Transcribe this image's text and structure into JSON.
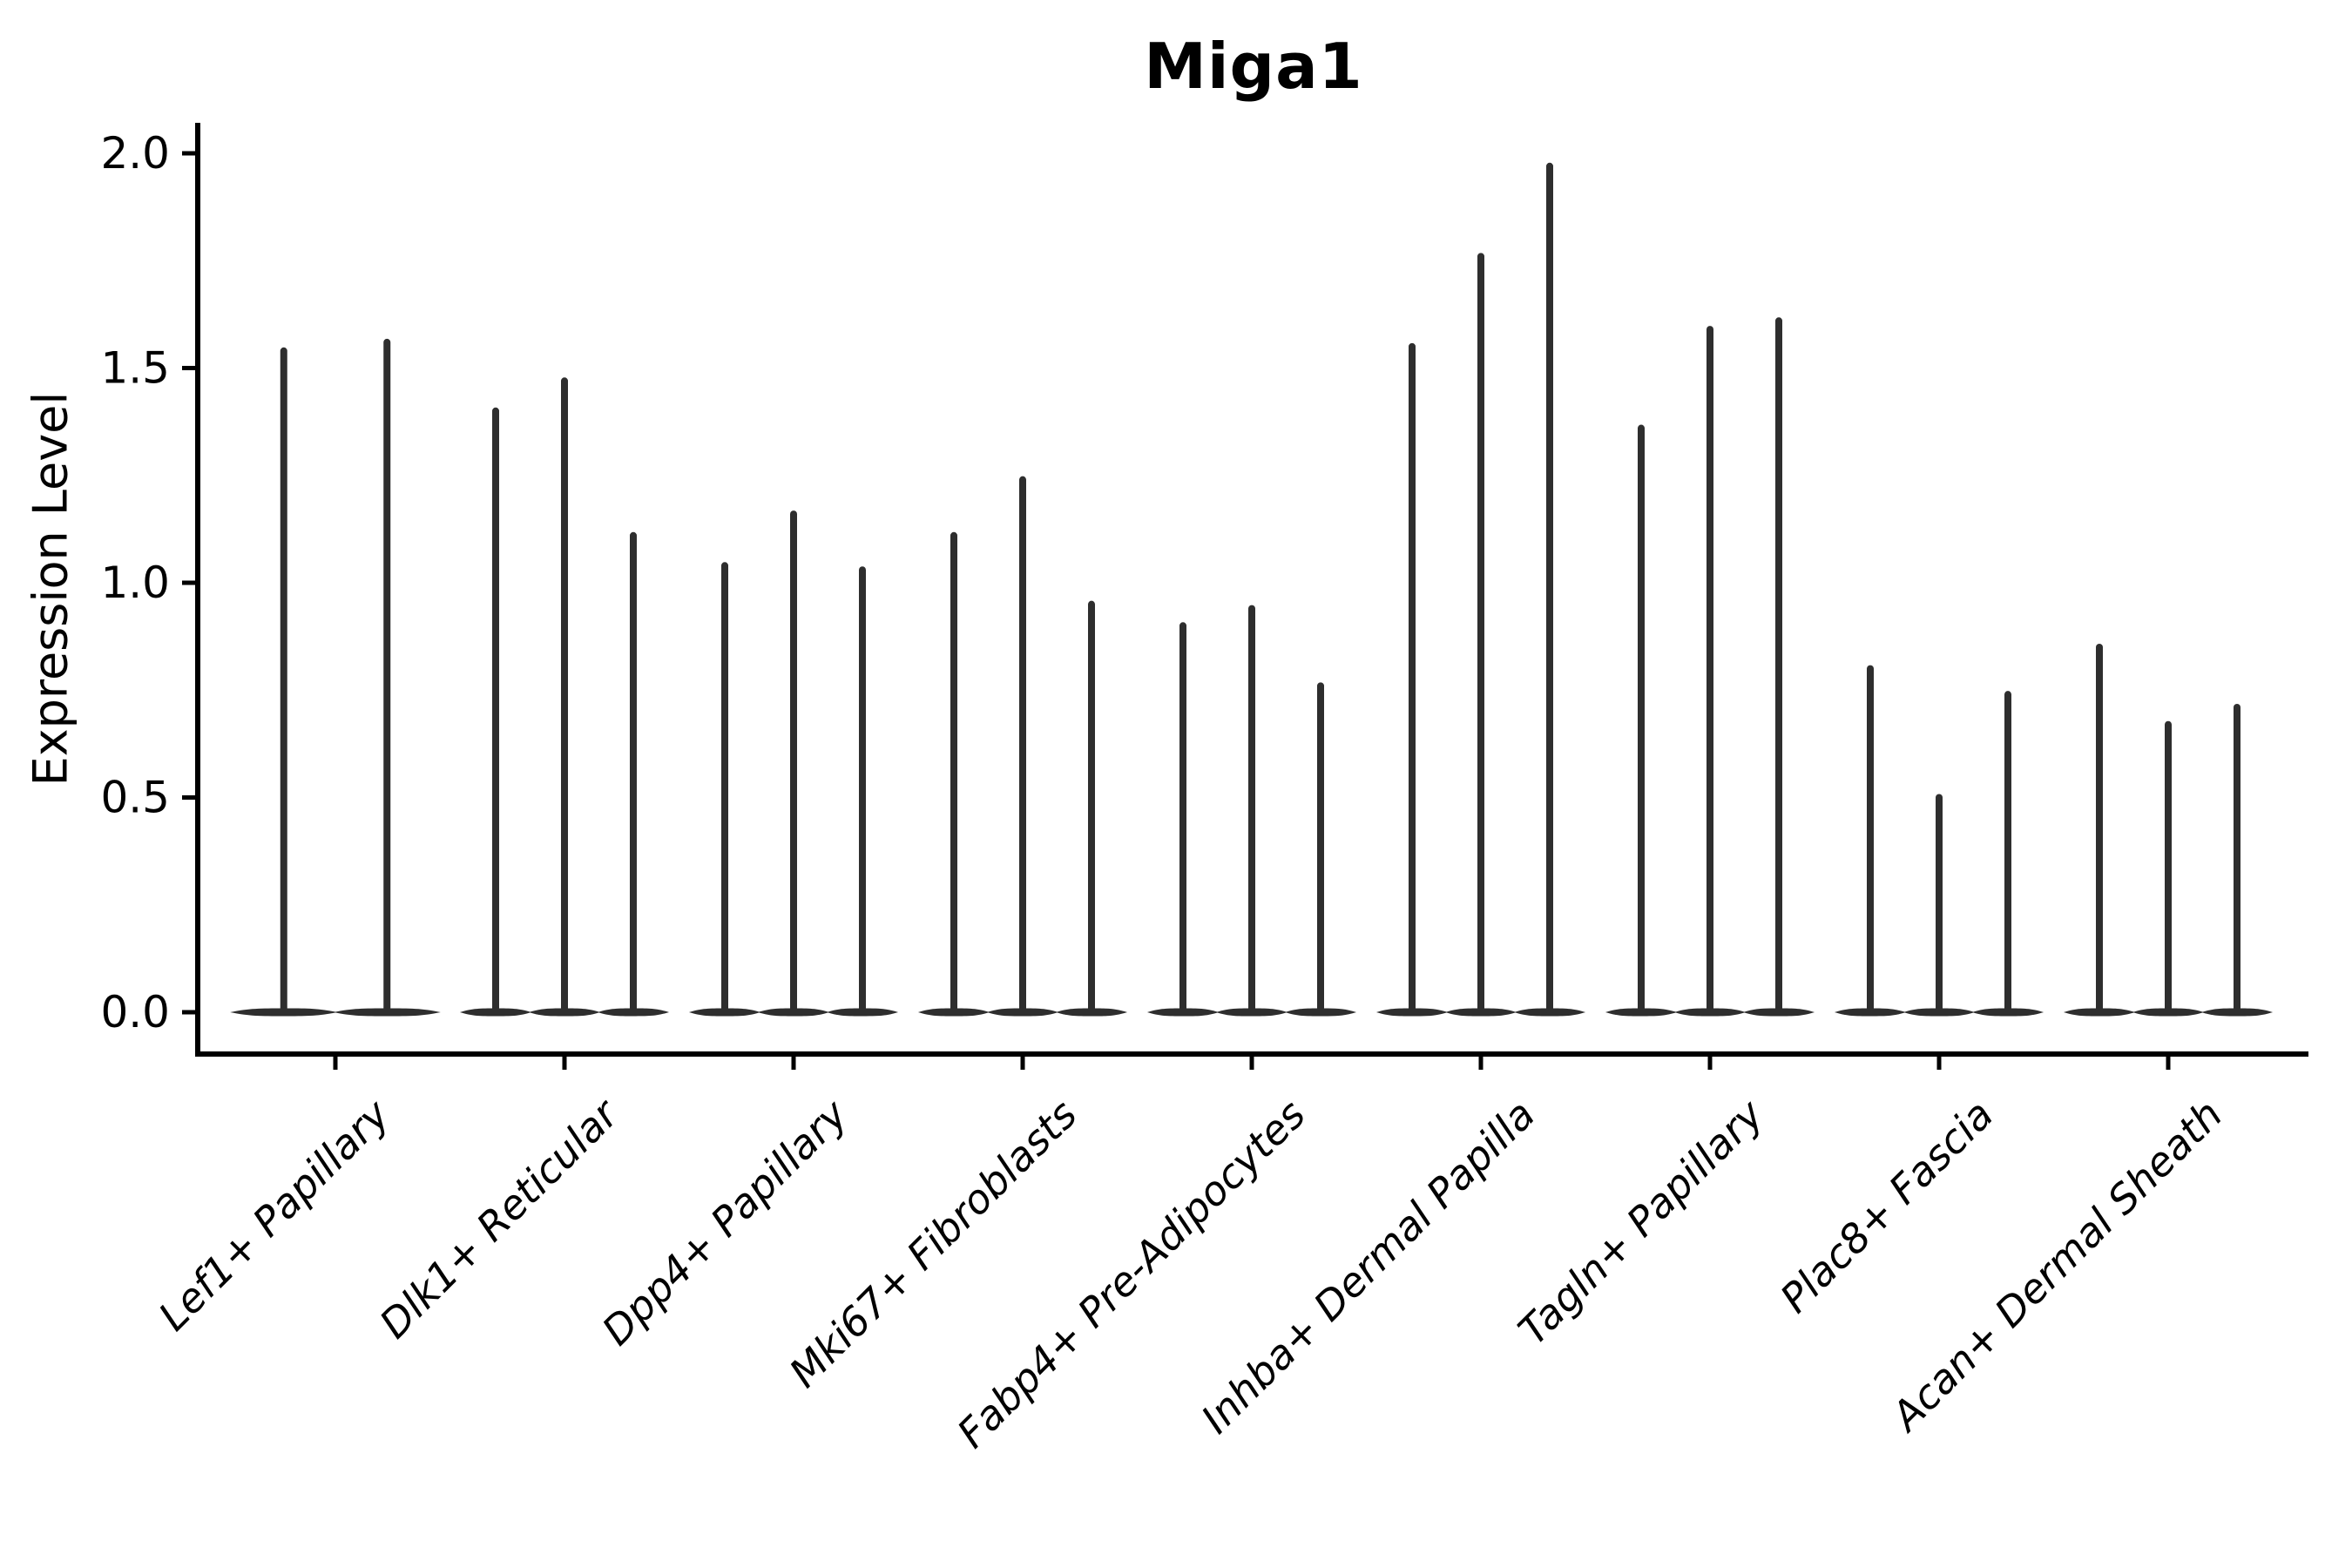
{
  "chart_data": {
    "type": "violin",
    "title": "Miga1",
    "ylabel": "Expression Level",
    "xlabel": "",
    "ytick_values": [
      0.0,
      0.5,
      1.0,
      1.5,
      2.0
    ],
    "ytick_labels": [
      "0.0",
      "0.5",
      "1.0",
      "1.5",
      "2.0"
    ],
    "ylim": [
      -0.1,
      2.07
    ],
    "grid": false,
    "legend": "none",
    "violin_color": "#2e2e2e",
    "axis_color": "#000000",
    "shape_note": "Seurat-style violins: dense flat mass at expression 0 with a thin vertical tail rising to the listed maximum",
    "categories": [
      "Lef1+ Papillary",
      "Dlk1+ Reticular",
      "Dpp4+ Papillary",
      "Mki67+ Fibroblasts",
      "Fabp4+ Pre-Adipocytes",
      "Inhba+ Dermal Papilla",
      "Tagln+ Papillary",
      "Plac8+ Fascia",
      "Acan+ Dermal Sheath"
    ],
    "groups": [
      {
        "label": "Lef1+ Papillary",
        "violin_maxima": [
          1.54,
          1.56
        ]
      },
      {
        "label": "Dlk1+ Reticular",
        "violin_maxima": [
          1.4,
          1.47,
          1.11
        ]
      },
      {
        "label": "Dpp4+ Papillary",
        "violin_maxima": [
          1.04,
          1.16,
          1.03
        ]
      },
      {
        "label": "Mki67+ Fibroblasts",
        "violin_maxima": [
          1.11,
          1.24,
          0.95
        ]
      },
      {
        "label": "Fabp4+ Pre-Adipocytes",
        "violin_maxima": [
          0.9,
          0.94,
          0.76
        ]
      },
      {
        "label": "Inhba+ Dermal Papilla",
        "violin_maxima": [
          1.55,
          1.76,
          1.97
        ]
      },
      {
        "label": "Tagln+ Papillary",
        "violin_maxima": [
          1.36,
          1.59,
          1.61
        ]
      },
      {
        "label": "Plac8+ Fascia",
        "violin_maxima": [
          0.8,
          0.5,
          0.74
        ]
      },
      {
        "label": "Acan+ Dermal Sheath",
        "violin_maxima": [
          0.85,
          0.67,
          0.71
        ]
      }
    ]
  }
}
